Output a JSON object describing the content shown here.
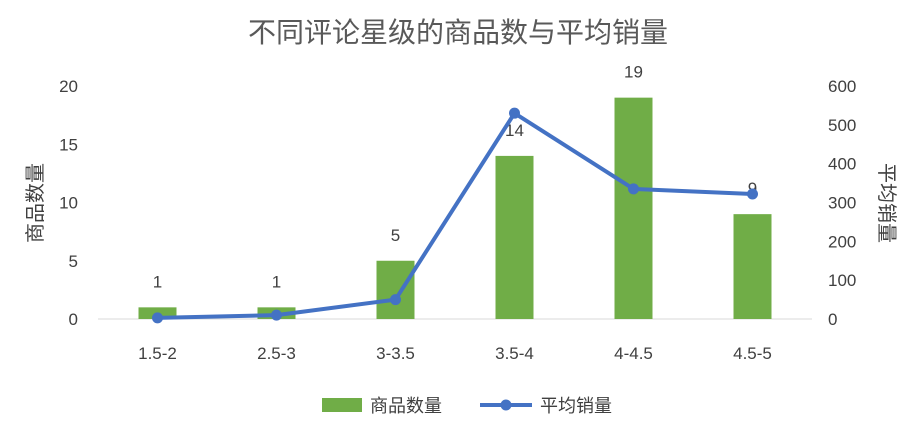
{
  "chart_data": {
    "type": "bar",
    "title": "不同评论星级的商品数与平均销量",
    "categories": [
      "1.5-2",
      "2.5-3",
      "3-3.5",
      "3.5-4",
      "4-4.5",
      "4.5-5"
    ],
    "series": [
      {
        "name": "商品数量",
        "type": "bar",
        "axis": "left",
        "color": "#70AD47",
        "values": [
          1,
          1,
          5,
          14,
          19,
          9
        ]
      },
      {
        "name": "平均销量",
        "type": "line",
        "axis": "right",
        "color": "#4472C4",
        "marker": "circle",
        "values": [
          3,
          10,
          50,
          530,
          335,
          322
        ]
      }
    ],
    "data_labels": [
      "1",
      "1",
      "5",
      "14",
      "19",
      "9"
    ],
    "ylabel": "商品数量",
    "y2label": "平均销量",
    "ylim": [
      0,
      20
    ],
    "yticks": [
      0,
      5,
      10,
      15,
      20
    ],
    "y2lim": [
      0,
      600
    ],
    "y2ticks": [
      0,
      100,
      200,
      300,
      400,
      500,
      600
    ],
    "grid": false,
    "legend_position": "bottom"
  }
}
